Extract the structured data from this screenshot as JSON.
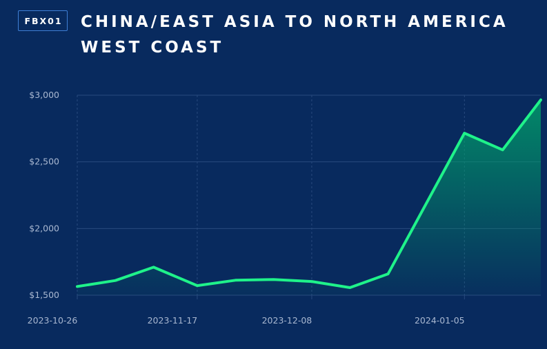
{
  "header": {
    "badge": "FBX01",
    "title": "CHINA/EAST ASIA TO NORTH AMERICA WEST COAST"
  },
  "colors": {
    "background": "#082a5e",
    "line": "#1ff28a",
    "grid": "#284a7e",
    "tick_text": "#a9b8d1"
  },
  "chart_data": {
    "type": "area",
    "title": "CHINA/EAST ASIA TO NORTH AMERICA WEST COAST",
    "xlabel": "",
    "ylabel": "",
    "x": [
      "2023-10-26",
      "2023-11-02",
      "2023-11-09",
      "2023-11-17",
      "2023-11-24",
      "2023-12-01",
      "2023-12-08",
      "2023-12-15",
      "2023-12-22",
      "2024-01-05",
      "2024-01-12",
      "2024-01-19"
    ],
    "values": [
      1565,
      1610,
      1710,
      1572,
      1612,
      1618,
      1603,
      1557,
      1660,
      2715,
      2590,
      2965
    ],
    "x_ticks": [
      "2023-10-26",
      "2023-11-17",
      "2023-12-08",
      "2024-01-05"
    ],
    "y_ticks": [
      1500,
      2000,
      2500,
      3000
    ],
    "y_tick_labels": [
      "$1,500",
      "$2,000",
      "$2,500",
      "$3,000"
    ],
    "ylim": [
      1500,
      3000
    ],
    "grid": true,
    "legend": "none"
  }
}
